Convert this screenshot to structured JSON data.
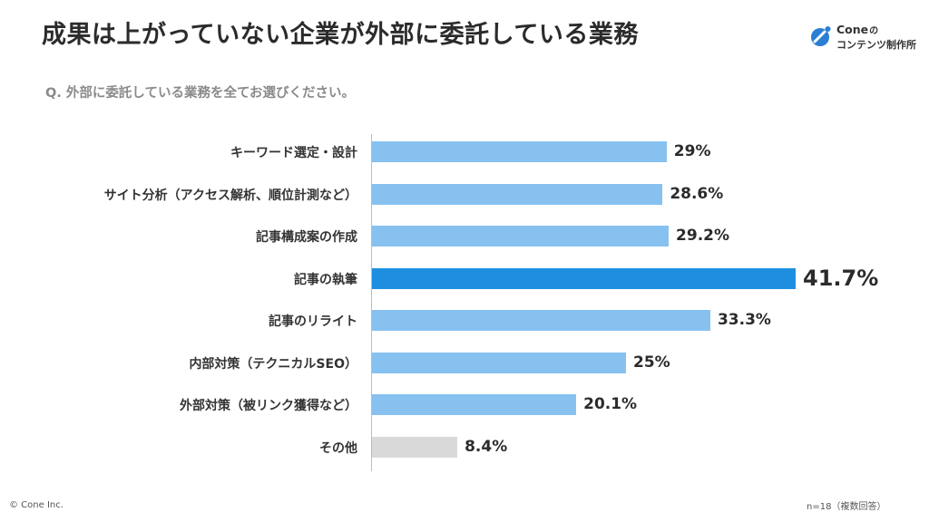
{
  "title": "成果は上がっていない企業が外部に委託している業務",
  "logo": {
    "brand": "Cone",
    "brand_suffix": "の",
    "tagline": "コンテンツ制作所"
  },
  "question": "Q. 外部に委託している業務を全てお選びください。",
  "footer": {
    "copyright": "© Cone Inc.",
    "note": "n=18（複数回答）"
  },
  "colors": {
    "bar": "#86c1f0",
    "highlight": "#1e8fe0",
    "other": "#d9d9d9",
    "logo_blue": "#2a7fd4"
  },
  "chart_data": {
    "type": "bar",
    "orientation": "horizontal",
    "categories": [
      "キーワード選定・設計",
      "サイト分析（アクセス解析、順位計測など）",
      "記事構成案の作成",
      "記事の執筆",
      "記事のリライト",
      "内部対策（テクニカルSEO）",
      "外部対策（被リンク獲得など）",
      "その他"
    ],
    "values": [
      29,
      28.6,
      29.2,
      41.7,
      33.3,
      25,
      20.1,
      8.4
    ],
    "value_labels": [
      "29%",
      "28.6%",
      "29.2%",
      "41.7%",
      "33.3%",
      "25%",
      "20.1%",
      "8.4%"
    ],
    "highlight_index": 3,
    "other_index": 7,
    "xlim": [
      0,
      50
    ],
    "grid": false,
    "legend": "none"
  }
}
